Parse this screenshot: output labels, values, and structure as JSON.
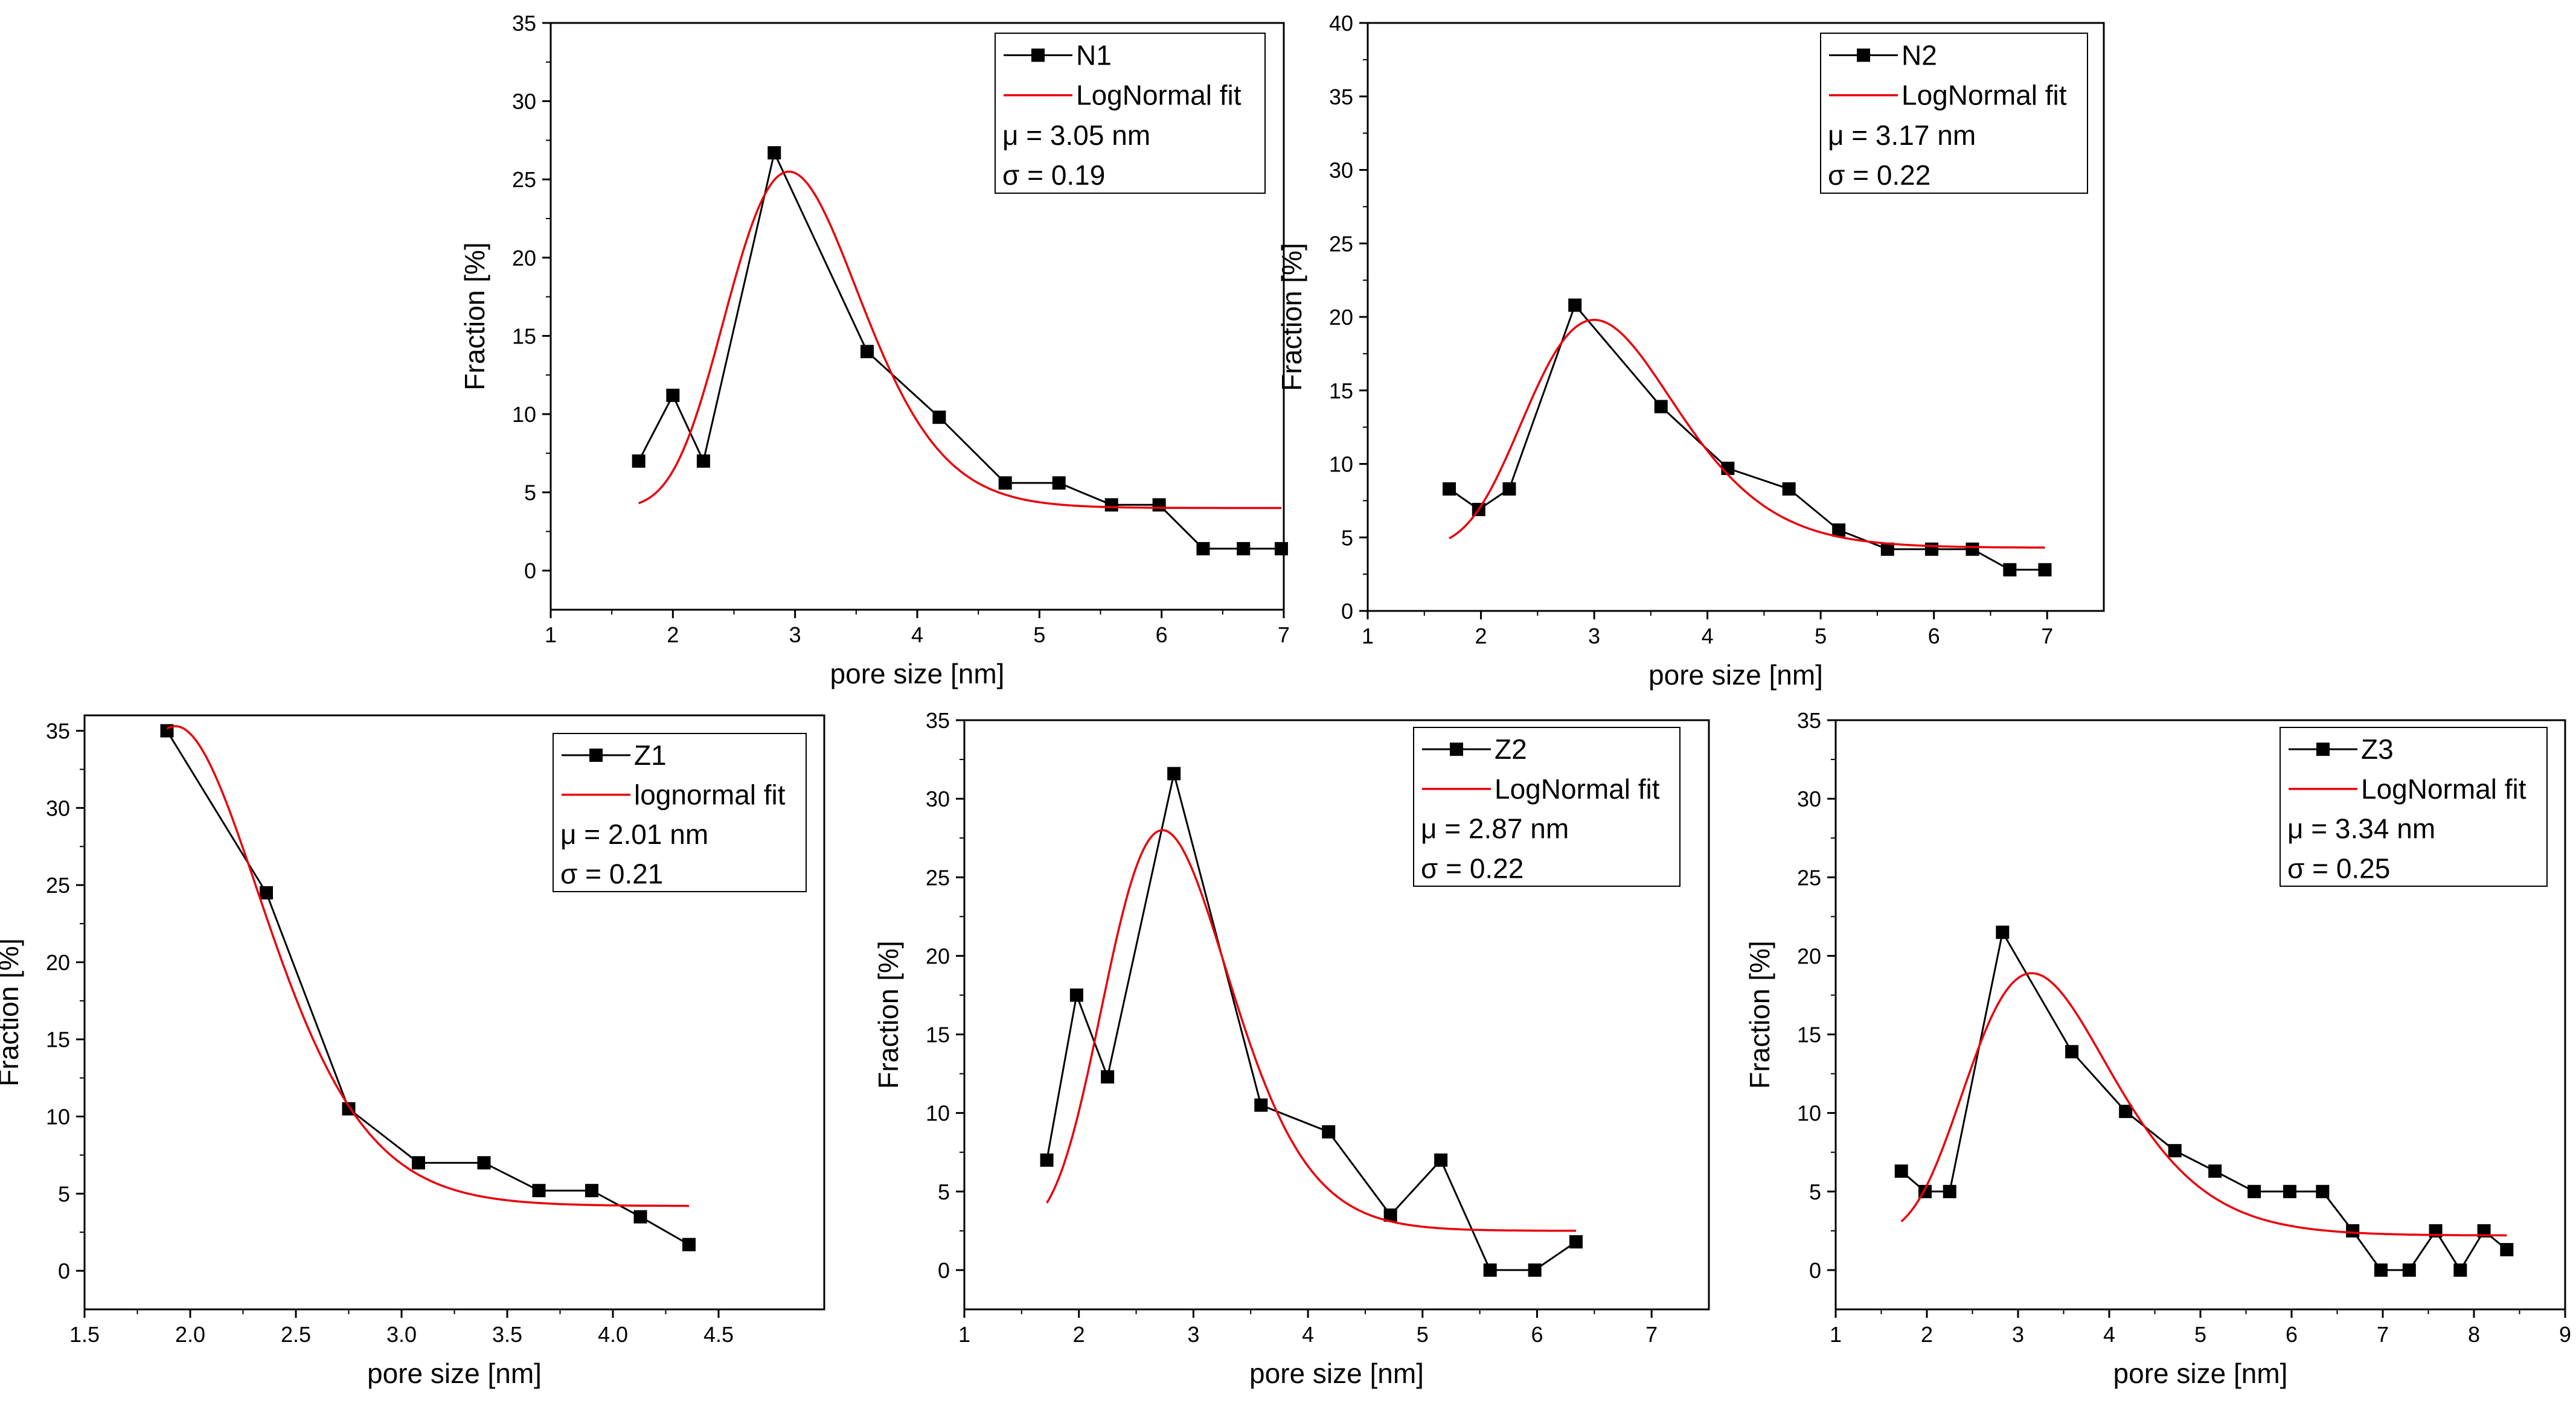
{
  "chart_data": [
    {
      "id": "n1",
      "type": "line",
      "xlabel": "pore size [nm]",
      "ylabel": "Fraction [%]",
      "xlim": [
        1,
        7
      ],
      "ylim": [
        -2.5,
        35
      ],
      "xticks": [
        1,
        2,
        3,
        4,
        5,
        6,
        7
      ],
      "xtick_labels": [
        "1",
        "2",
        "3",
        "4",
        "5",
        "6",
        "7"
      ],
      "yticks": [
        0,
        5,
        10,
        15,
        20,
        25,
        30,
        35
      ],
      "ytick_labels": [
        "0",
        "5",
        "10",
        "15",
        "20",
        "25",
        "30",
        "35"
      ],
      "legend": {
        "data_label": "N1",
        "fit_label": "LogNormal fit",
        "mu_text": "μ = 3.05 nm",
        "sigma_text": "σ = 0.19"
      },
      "series": [
        {
          "name": "N1",
          "style": "line-square",
          "color": "#000000",
          "x": [
            1.72,
            2.0,
            2.25,
            2.83,
            3.59,
            4.18,
            4.72,
            5.16,
            5.59,
            5.98,
            6.34,
            6.67,
            6.98
          ],
          "y": [
            7.0,
            11.2,
            7.0,
            26.7,
            14.0,
            9.8,
            5.6,
            5.6,
            4.2,
            4.2,
            1.4,
            1.4,
            1.4
          ]
        },
        {
          "name": "LogNormal fit",
          "style": "line",
          "color": "#e8000b",
          "fit": {
            "y0": 4.0,
            "xc": 2.95,
            "w": 0.185,
            "A": 21.5
          },
          "x_range": [
            1.72,
            6.98
          ]
        }
      ]
    },
    {
      "id": "n2",
      "type": "line",
      "xlabel": "pore size [nm]",
      "ylabel": "Fraction [%]",
      "xlim": [
        1,
        7.5
      ],
      "ylim": [
        0,
        40
      ],
      "xticks": [
        1,
        2,
        3,
        4,
        5,
        6,
        7
      ],
      "xtick_labels": [
        "1",
        "2",
        "3",
        "4",
        "5",
        "6",
        "7"
      ],
      "yticks": [
        0,
        5,
        10,
        15,
        20,
        25,
        30,
        35,
        40
      ],
      "ytick_labels": [
        "0",
        "5",
        "10",
        "15",
        "20",
        "25",
        "30",
        "35",
        "40"
      ],
      "legend": {
        "data_label": "N2",
        "fit_label": "LogNormal fit",
        "mu_text": "μ = 3.17 nm",
        "sigma_text": "σ = 0.22"
      },
      "series": [
        {
          "name": "N2",
          "style": "line-square",
          "color": "#000000",
          "x": [
            1.72,
            1.98,
            2.25,
            2.83,
            3.59,
            4.18,
            4.72,
            5.16,
            5.59,
            5.98,
            6.34,
            6.67,
            6.98
          ],
          "y": [
            8.3,
            6.9,
            8.3,
            20.8,
            13.9,
            9.7,
            8.3,
            5.5,
            4.2,
            4.2,
            4.2,
            2.8,
            2.8
          ]
        },
        {
          "name": "LogNormal fit",
          "style": "line",
          "color": "#e8000b",
          "fit": {
            "y0": 4.3,
            "xc": 3.0,
            "w": 0.22,
            "A": 15.5
          },
          "x_range": [
            1.72,
            6.98
          ]
        }
      ]
    },
    {
      "id": "z1",
      "type": "line",
      "xlabel": "pore size [nm]",
      "ylabel": "Fraction [%]",
      "xlim": [
        1.5,
        5
      ],
      "ylim": [
        -2.5,
        36
      ],
      "xticks": [
        1.5,
        2.0,
        2.5,
        3.0,
        3.5,
        4.0,
        4.5
      ],
      "xtick_labels": [
        "1.5",
        "2.0",
        "2.5",
        "3.0",
        "3.5",
        "4.0",
        "4.5"
      ],
      "yticks": [
        0,
        5,
        10,
        15,
        20,
        25,
        30,
        35
      ],
      "ytick_labels": [
        "0",
        "5",
        "10",
        "15",
        "20",
        "25",
        "30",
        "35"
      ],
      "legend": {
        "data_label": "Z1",
        "fit_label": "lognormal fit",
        "mu_text": "μ = 2.01 nm",
        "sigma_text": "σ = 0.21"
      },
      "series": [
        {
          "name": "Z1",
          "style": "line-square",
          "color": "#000000",
          "x": [
            1.89,
            2.36,
            2.75,
            3.08,
            3.39,
            3.65,
            3.9,
            4.13,
            4.36
          ],
          "y": [
            35.0,
            24.5,
            10.5,
            7.0,
            7.0,
            5.2,
            5.2,
            3.5,
            1.7
          ]
        },
        {
          "name": "lognormal fit",
          "style": "line",
          "color": "#e8000b",
          "fit": {
            "y0": 4.2,
            "xc": 1.93,
            "w": 0.2,
            "A": 31.1
          },
          "x_range": [
            1.89,
            4.36
          ]
        }
      ]
    },
    {
      "id": "z2",
      "type": "line",
      "xlabel": "pore size [nm]",
      "ylabel": "Fraction [%]",
      "xlim": [
        1,
        7.5
      ],
      "ylim": [
        -2.5,
        35
      ],
      "xticks": [
        1,
        2,
        3,
        4,
        5,
        6,
        7
      ],
      "xtick_labels": [
        "1",
        "2",
        "3",
        "4",
        "5",
        "6",
        "7"
      ],
      "yticks": [
        0,
        5,
        10,
        15,
        20,
        25,
        30,
        35
      ],
      "ytick_labels": [
        "0",
        "5",
        "10",
        "15",
        "20",
        "25",
        "30",
        "35"
      ],
      "legend": {
        "data_label": "Z2",
        "fit_label": "LogNormal fit",
        "mu_text": "μ = 2.87 nm",
        "sigma_text": "σ = 0.22"
      },
      "series": [
        {
          "name": "Z2",
          "style": "line-square",
          "color": "#000000",
          "x": [
            1.72,
            1.98,
            2.25,
            2.83,
            3.59,
            4.18,
            4.72,
            5.16,
            5.59,
            5.98,
            6.34
          ],
          "y": [
            7.0,
            17.5,
            12.3,
            31.6,
            10.5,
            8.8,
            3.5,
            7.0,
            0.0,
            0.0,
            1.8
          ]
        },
        {
          "name": "LogNormal fit",
          "style": "line",
          "color": "#e8000b",
          "fit": {
            "y0": 2.5,
            "xc": 2.73,
            "w": 0.2,
            "A": 25.5
          },
          "x_range": [
            1.72,
            6.34
          ]
        }
      ]
    },
    {
      "id": "z3",
      "type": "line",
      "xlabel": "pore size [nm]",
      "ylabel": "Fraction [%]",
      "xlim": [
        1,
        9
      ],
      "ylim": [
        -2.5,
        35
      ],
      "xticks": [
        1,
        2,
        3,
        4,
        5,
        6,
        7,
        8,
        9
      ],
      "xtick_labels": [
        "1",
        "2",
        "3",
        "4",
        "5",
        "6",
        "7",
        "8",
        "9"
      ],
      "yticks": [
        0,
        5,
        10,
        15,
        20,
        25,
        30,
        35
      ],
      "ytick_labels": [
        "0",
        "5",
        "10",
        "15",
        "20",
        "25",
        "30",
        "35"
      ],
      "legend": {
        "data_label": "Z3",
        "fit_label": "LogNormal fit",
        "mu_text": "μ = 3.34 nm",
        "sigma_text": "σ = 0.25"
      },
      "series": [
        {
          "name": "Z3",
          "style": "line-square",
          "color": "#000000",
          "x": [
            1.72,
            1.98,
            2.25,
            2.83,
            3.59,
            4.18,
            4.72,
            5.16,
            5.59,
            5.98,
            6.34,
            6.67,
            6.98,
            7.29,
            7.58,
            7.85,
            8.11,
            8.36
          ],
          "y": [
            6.3,
            5.0,
            5.0,
            21.5,
            13.9,
            10.1,
            7.6,
            6.3,
            5.0,
            5.0,
            5.0,
            2.5,
            0.0,
            0.0,
            2.5,
            0.0,
            2.5,
            1.3
          ]
        },
        {
          "name": "LogNormal fit",
          "style": "line",
          "color": "#e8000b",
          "fit": {
            "y0": 2.2,
            "xc": 3.15,
            "w": 0.25,
            "A": 16.7
          },
          "x_range": [
            1.72,
            8.36
          ]
        }
      ]
    }
  ]
}
